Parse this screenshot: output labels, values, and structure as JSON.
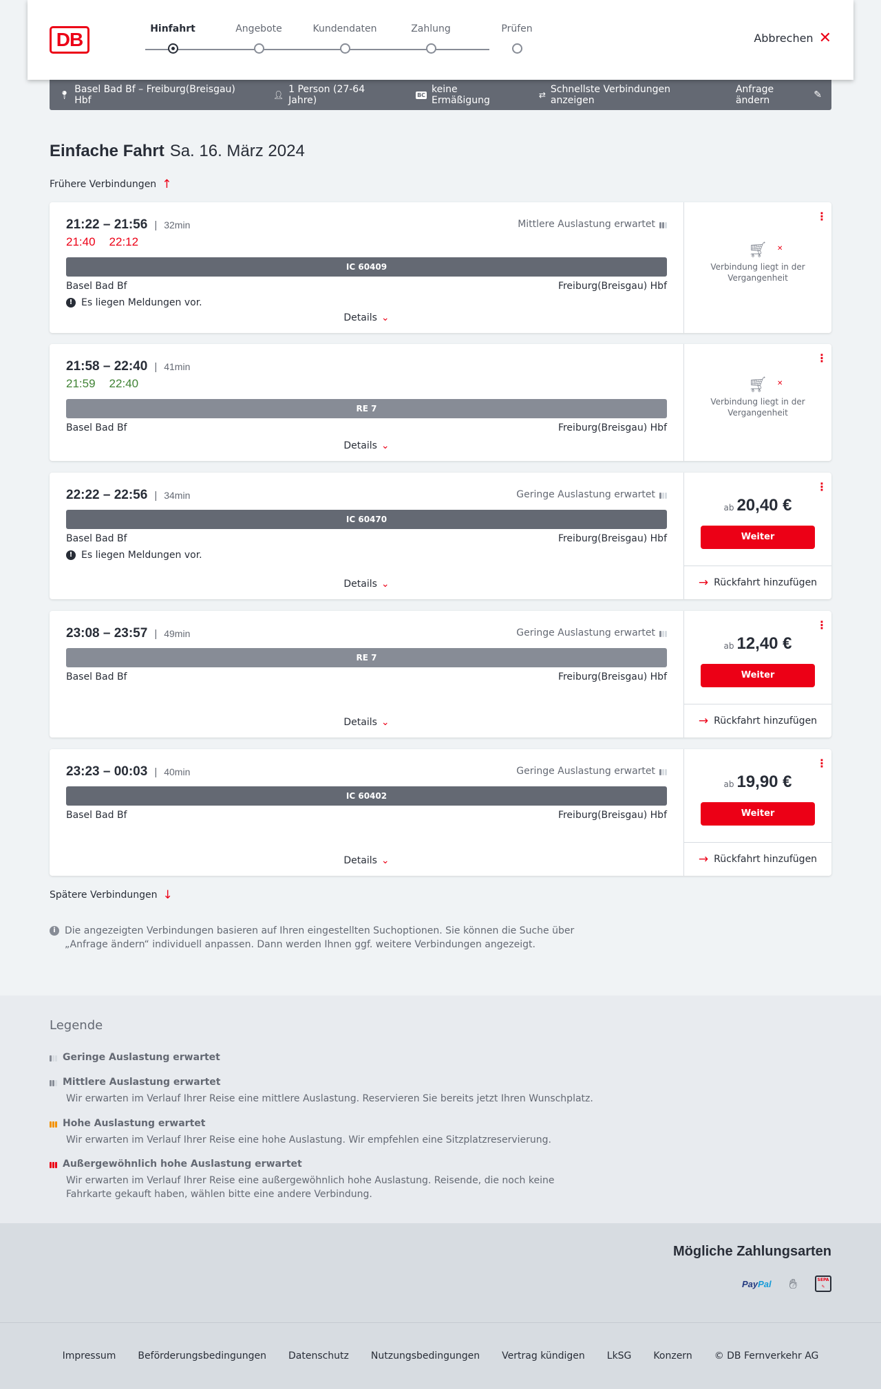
{
  "header": {
    "logo": "DB",
    "steps": [
      "Hinfahrt",
      "Angebote",
      "Kundendaten",
      "Zahlung",
      "Prüfen"
    ],
    "active_step": 0,
    "cancel_label": "Abbrechen"
  },
  "infobar": {
    "route": "Basel Bad Bf – Freiburg(Breisgau) Hbf",
    "travellers": "1 Person (27-64 Jahre)",
    "discount_badge": "BC",
    "discount": "keine Ermäßigung",
    "fastest": "Schnellste Verbindungen anzeigen",
    "change": "Anfrage ändern"
  },
  "page": {
    "title": "Einfache Fahrt",
    "date": "Sa. 16. März 2024",
    "earlier": "Frühere Verbindungen",
    "later": "Spätere Verbindungen",
    "note": "Die angezeigten Verbindungen basieren auf Ihren eingestellten Suchoptionen. Sie können die Suche über „Anfrage ändern“ individuell anpassen. Dann werden Ihnen ggf. weitere Verbindungen angezeigt."
  },
  "connections": [
    {
      "times": "21:22 – 21:56",
      "duration": "32min",
      "occupancy": "Mittlere Auslastung erwartet",
      "occupancy_level": 2,
      "delay_dep": "21:40",
      "delay_arr": "22:12",
      "delay_color": "#ec0016",
      "train": "IC 60409",
      "from": "Basel Bad Bf",
      "to": "Freiburg(Breisgau) Hbf",
      "message": "Es liegen Meldungen vor.",
      "details": "Details",
      "status": "Verbindung liegt in der Vergangenheit"
    },
    {
      "times": "21:58 – 22:40",
      "duration": "41min",
      "delay_dep": "21:59",
      "delay_arr": "22:40",
      "delay_color": "#408335",
      "train": "RE 7",
      "from": "Basel Bad Bf",
      "to": "Freiburg(Breisgau) Hbf",
      "details": "Details",
      "status": "Verbindung liegt in der Vergangenheit"
    },
    {
      "times": "22:22 – 22:56",
      "duration": "34min",
      "occupancy": "Geringe Auslastung erwartet",
      "occupancy_level": 1,
      "train": "IC 60470",
      "from": "Basel Bad Bf",
      "to": "Freiburg(Breisgau) Hbf",
      "message": "Es liegen Meldungen vor.",
      "details": "Details",
      "price_prefix": "ab",
      "price": "20,40 €",
      "button": "Weiter",
      "return": "Rückfahrt hinzufügen"
    },
    {
      "times": "23:08 – 23:57",
      "duration": "49min",
      "occupancy": "Geringe Auslastung erwartet",
      "occupancy_level": 1,
      "train": "RE 7",
      "from": "Basel Bad Bf",
      "to": "Freiburg(Breisgau) Hbf",
      "details": "Details",
      "price_prefix": "ab",
      "price": "12,40 €",
      "button": "Weiter",
      "return": "Rückfahrt hinzufügen"
    },
    {
      "times": "23:23 – 00:03",
      "duration": "40min",
      "occupancy": "Geringe Auslastung erwartet",
      "occupancy_level": 1,
      "train": "IC 60402",
      "from": "Basel Bad Bf",
      "to": "Freiburg(Breisgau) Hbf",
      "details": "Details",
      "price_prefix": "ab",
      "price": "19,90 €",
      "button": "Weiter",
      "return": "Rückfahrt hinzufügen"
    }
  ],
  "legend": {
    "title": "Legende",
    "items": [
      {
        "title": "Geringe Auslastung erwartet",
        "color": "#646973"
      },
      {
        "title": "Mittlere Auslastung erwartet",
        "text": "Wir erwarten im Verlauf Ihrer Reise eine mittlere Auslastung. Reservieren Sie bereits jetzt Ihren Wunschplatz.",
        "color": "#646973"
      },
      {
        "title": "Hohe Auslastung erwartet",
        "text": "Wir erwarten im Verlauf Ihrer Reise eine hohe Auslastung. Wir empfehlen eine Sitzplatzreservierung.",
        "color": "#f39200"
      },
      {
        "title": "Außergewöhnlich hohe Auslastung erwartet",
        "text": "Wir erwarten im Verlauf Ihrer Reise eine außergewöhnlich hohe Auslastung. Reisende, die noch keine Fahrkarte gekauft haben, wählen bitte eine andere Verbindung.",
        "color": "#ec0016"
      }
    ]
  },
  "payment": {
    "title": "Mögliche Zahlungsarten",
    "methods": [
      "PayPal",
      "credit-card-icon",
      "SEPA"
    ]
  },
  "footer": {
    "links": [
      "Impressum",
      "Beförderungsbedingungen",
      "Datenschutz",
      "Nutzungsbedingungen",
      "Vertrag kündigen",
      "LkSG",
      "Konzern",
      "© DB Fernverkehr AG"
    ]
  },
  "colors": {
    "brand_red": "#ec0016",
    "bar_dark": "#646973",
    "on_time_green": "#408335",
    "high_occupancy_orange": "#f39200"
  }
}
